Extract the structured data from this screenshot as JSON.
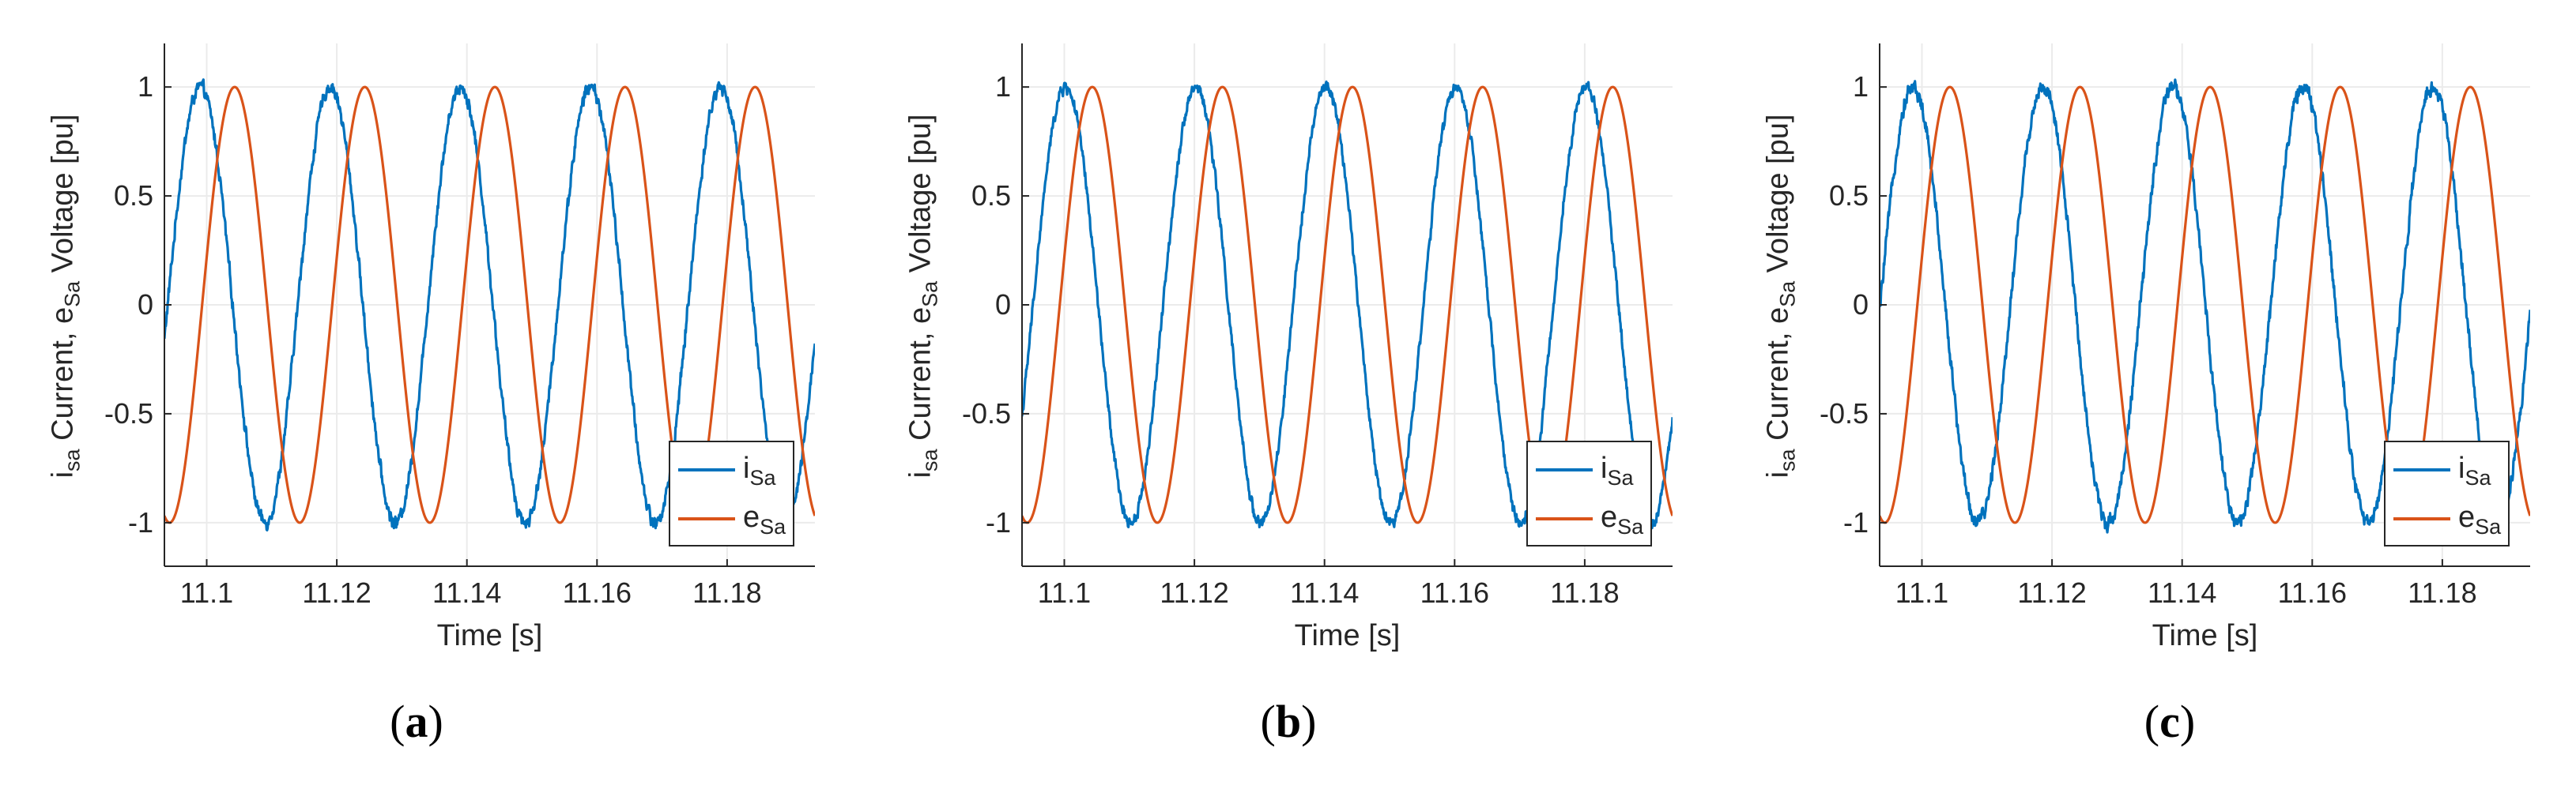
{
  "chart_data": [
    {
      "type": "line",
      "panel": "(a)",
      "panel_letter": "a",
      "xlabel": "Time [s]",
      "ylabel": "Current, e",
      "ylabel_sub_prefix": "sa",
      "ylabel_sub_mid": "Sa",
      "ylabel_suffix": "Voltage [pu]",
      "ylabel_prefix": "i",
      "xlim": [
        11.0935,
        11.1935
      ],
      "ylim": [
        -1.2,
        1.2
      ],
      "xticks": [
        11.1,
        11.12,
        11.14,
        11.16,
        11.18
      ],
      "xticklabels": [
        "11.1",
        "11.12",
        "11.14",
        "11.16",
        "11.18"
      ],
      "yticks": [
        -1,
        -0.5,
        0,
        0.5,
        1
      ],
      "yticklabels": [
        "-1",
        "-0.5",
        "0",
        "0.5",
        "1"
      ],
      "grid": true,
      "legend_loc": "bottom-right",
      "frequency_hz": 50,
      "series": [
        {
          "name": "i",
          "sub": "Sa",
          "color": "#0072BD",
          "amplitude": 1.0,
          "peak_time": 11.099,
          "noise": 0.045
        },
        {
          "name": "e",
          "sub": "Sa",
          "color": "#D95319",
          "amplitude": 1.0,
          "peak_time": 11.1043,
          "noise": 0
        }
      ]
    },
    {
      "type": "line",
      "panel": "(b)",
      "panel_letter": "b",
      "xlabel": "Time [s]",
      "ylabel": "Current, e",
      "ylabel_sub_prefix": "sa",
      "ylabel_sub_mid": "Sa",
      "ylabel_suffix": "Voltage [pu]",
      "ylabel_prefix": "i",
      "xlim": [
        11.0935,
        11.1935
      ],
      "ylim": [
        -1.2,
        1.2
      ],
      "xticks": [
        11.1,
        11.12,
        11.14,
        11.16,
        11.18
      ],
      "xticklabels": [
        "11.1",
        "11.12",
        "11.14",
        "11.16",
        "11.18"
      ],
      "yticks": [
        -1,
        -0.5,
        0,
        0.5,
        1
      ],
      "yticklabels": [
        "-1",
        "-0.5",
        "0",
        "0.5",
        "1"
      ],
      "grid": true,
      "legend_loc": "bottom-right",
      "frequency_hz": 50,
      "series": [
        {
          "name": "i",
          "sub": "Sa",
          "color": "#0072BD",
          "amplitude": 1.0,
          "peak_time": 11.1002,
          "noise": 0.04
        },
        {
          "name": "e",
          "sub": "Sa",
          "color": "#D95319",
          "amplitude": 1.0,
          "peak_time": 11.1043,
          "noise": 0
        }
      ]
    },
    {
      "type": "line",
      "panel": "(c)",
      "panel_letter": "c",
      "xlabel": "Time [s]",
      "ylabel": "Current, e",
      "ylabel_sub_prefix": "sa",
      "ylabel_sub_mid": "Sa",
      "ylabel_suffix": "Voltage [pu]",
      "ylabel_prefix": "i",
      "xlim": [
        11.0935,
        11.1935
      ],
      "ylim": [
        -1.2,
        1.2
      ],
      "xticks": [
        11.1,
        11.12,
        11.14,
        11.16,
        11.18
      ],
      "xticklabels": [
        "11.1",
        "11.12",
        "11.14",
        "11.16",
        "11.18"
      ],
      "yticks": [
        -1,
        -0.5,
        0,
        0.5,
        1
      ],
      "yticklabels": [
        "-1",
        "-0.5",
        "0",
        "0.5",
        "1"
      ],
      "grid": true,
      "legend_loc": "bottom-right",
      "frequency_hz": 50,
      "series": [
        {
          "name": "i",
          "sub": "Sa",
          "color": "#0072BD",
          "amplitude": 1.0,
          "peak_time": 11.0986,
          "noise": 0.05
        },
        {
          "name": "e",
          "sub": "Sa",
          "color": "#D95319",
          "amplitude": 1.0,
          "peak_time": 11.1043,
          "noise": 0
        }
      ]
    }
  ],
  "colors": {
    "axis": "#262626",
    "grid": "#EBEBEB",
    "current": "#0072BD",
    "voltage": "#D95319"
  }
}
